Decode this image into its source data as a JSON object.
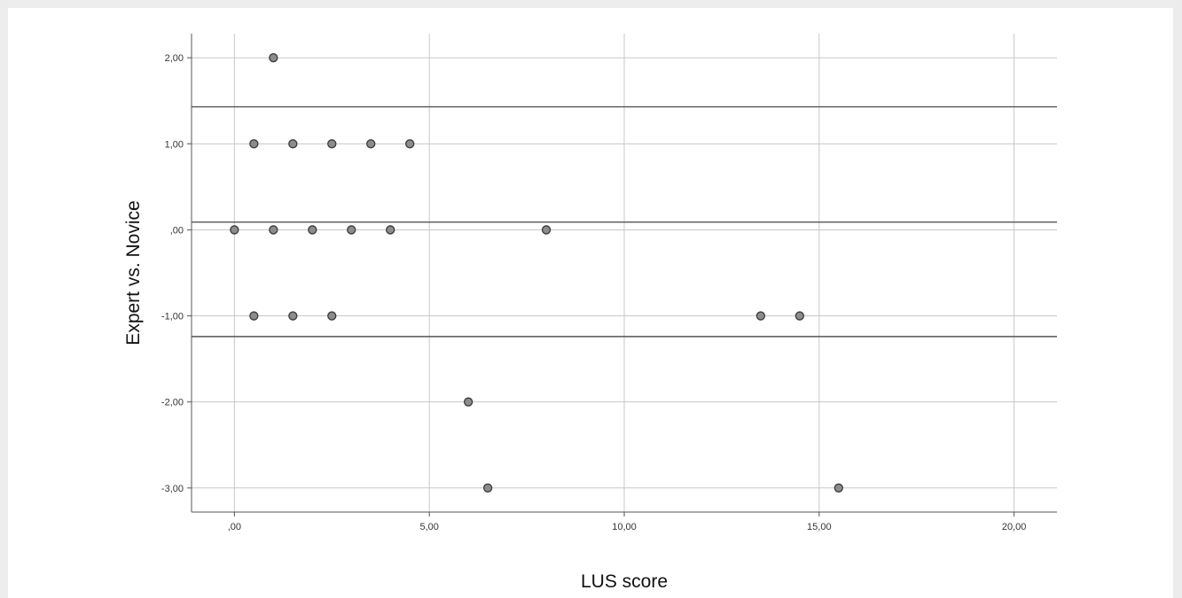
{
  "chart_data": {
    "type": "scatter",
    "title": "",
    "xlabel": "LUS score",
    "ylabel": "Expert vs. Novice",
    "xlim": [
      -1.1,
      21.1
    ],
    "ylim": [
      -3.28,
      2.28
    ],
    "x_ticks": [
      0,
      5,
      10,
      15,
      20
    ],
    "x_tick_labels": [
      ",00",
      "5,00",
      "10,00",
      "15,00",
      "20,00"
    ],
    "y_ticks": [
      2,
      1,
      0,
      -1,
      -2,
      -3
    ],
    "y_tick_labels": [
      "2,00",
      "1,00",
      ",00",
      "-1,00",
      "-2,00",
      "-3,00"
    ],
    "grid": true,
    "reference_lines": [
      1.43,
      0.09,
      -1.24
    ],
    "points": [
      {
        "x": 1.0,
        "y": 2
      },
      {
        "x": 0.5,
        "y": 1
      },
      {
        "x": 1.5,
        "y": 1
      },
      {
        "x": 2.5,
        "y": 1
      },
      {
        "x": 3.5,
        "y": 1
      },
      {
        "x": 4.5,
        "y": 1
      },
      {
        "x": 0.0,
        "y": 0
      },
      {
        "x": 1.0,
        "y": 0
      },
      {
        "x": 2.0,
        "y": 0
      },
      {
        "x": 3.0,
        "y": 0
      },
      {
        "x": 4.0,
        "y": 0
      },
      {
        "x": 8.0,
        "y": 0
      },
      {
        "x": 0.5,
        "y": -1
      },
      {
        "x": 1.5,
        "y": -1
      },
      {
        "x": 2.5,
        "y": -1
      },
      {
        "x": 13.5,
        "y": -1
      },
      {
        "x": 14.5,
        "y": -1
      },
      {
        "x": 6.0,
        "y": -2
      },
      {
        "x": 6.5,
        "y": -3
      },
      {
        "x": 15.5,
        "y": -3
      }
    ],
    "colors": {
      "marker_fill": "#8c8c8c",
      "marker_stroke": "#3a3a3a",
      "grid": "#c8c8c8",
      "reference_line": "#555555",
      "axis": "#555555"
    }
  }
}
